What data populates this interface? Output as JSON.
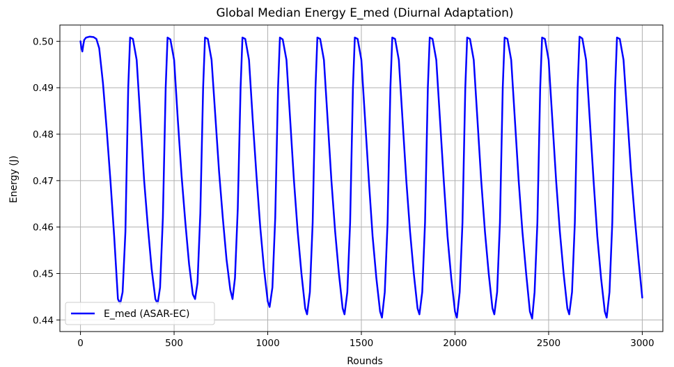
{
  "chart_data": {
    "type": "line",
    "title": "Global Median Energy E_med (Diurnal Adaptation)",
    "xlabel": "Rounds",
    "ylabel": "Energy (J)",
    "xlim": [
      -110,
      3110
    ],
    "ylim": [
      0.4375,
      0.5035
    ],
    "xticks": [
      0,
      500,
      1000,
      1500,
      2000,
      2500,
      3000
    ],
    "yticks": [
      0.44,
      0.45,
      0.46,
      0.47,
      0.48,
      0.49,
      0.5
    ],
    "xtick_labels": [
      "0",
      "500",
      "1000",
      "1500",
      "2000",
      "2500",
      "3000"
    ],
    "ytick_labels": [
      "0.44",
      "0.45",
      "0.46",
      "0.47",
      "0.48",
      "0.49",
      "0.50"
    ],
    "grid": true,
    "legend_position": "lower-left",
    "series": [
      {
        "name": "E_med (ASAR-EC)",
        "color": "#0000ff",
        "points": [
          [
            0,
            0.5
          ],
          [
            5,
            0.4985
          ],
          [
            10,
            0.4978
          ],
          [
            15,
            0.4992
          ],
          [
            20,
            0.5003
          ],
          [
            30,
            0.5008
          ],
          [
            50,
            0.501
          ],
          [
            70,
            0.5009
          ],
          [
            85,
            0.5005
          ],
          [
            100,
            0.4985
          ],
          [
            120,
            0.491
          ],
          [
            140,
            0.481
          ],
          [
            160,
            0.47
          ],
          [
            180,
            0.458
          ],
          [
            200,
            0.4445
          ],
          [
            212,
            0.4435
          ],
          [
            225,
            0.446
          ],
          [
            240,
            0.459
          ],
          [
            255,
            0.49
          ],
          [
            265,
            0.5008
          ],
          [
            280,
            0.5005
          ],
          [
            300,
            0.496
          ],
          [
            320,
            0.483
          ],
          [
            340,
            0.47
          ],
          [
            360,
            0.46
          ],
          [
            380,
            0.451
          ],
          [
            400,
            0.4445
          ],
          [
            412,
            0.4435
          ],
          [
            425,
            0.447
          ],
          [
            440,
            0.462
          ],
          [
            455,
            0.49
          ],
          [
            465,
            0.5008
          ],
          [
            480,
            0.5004
          ],
          [
            500,
            0.496
          ],
          [
            520,
            0.483
          ],
          [
            540,
            0.471
          ],
          [
            560,
            0.461
          ],
          [
            580,
            0.452
          ],
          [
            600,
            0.4455
          ],
          [
            612,
            0.4445
          ],
          [
            625,
            0.448
          ],
          [
            640,
            0.463
          ],
          [
            655,
            0.49
          ],
          [
            665,
            0.5008
          ],
          [
            680,
            0.5005
          ],
          [
            700,
            0.496
          ],
          [
            720,
            0.484
          ],
          [
            740,
            0.472
          ],
          [
            760,
            0.462
          ],
          [
            780,
            0.453
          ],
          [
            800,
            0.4465
          ],
          [
            812,
            0.4445
          ],
          [
            825,
            0.449
          ],
          [
            840,
            0.464
          ],
          [
            855,
            0.49
          ],
          [
            865,
            0.5008
          ],
          [
            880,
            0.5005
          ],
          [
            900,
            0.496
          ],
          [
            920,
            0.483
          ],
          [
            940,
            0.471
          ],
          [
            960,
            0.46
          ],
          [
            980,
            0.451
          ],
          [
            1000,
            0.444
          ],
          [
            1010,
            0.4428
          ],
          [
            1025,
            0.447
          ],
          [
            1040,
            0.462
          ],
          [
            1055,
            0.49
          ],
          [
            1065,
            0.5008
          ],
          [
            1080,
            0.5004
          ],
          [
            1100,
            0.496
          ],
          [
            1120,
            0.483
          ],
          [
            1140,
            0.47
          ],
          [
            1160,
            0.459
          ],
          [
            1180,
            0.45
          ],
          [
            1200,
            0.4425
          ],
          [
            1210,
            0.4412
          ],
          [
            1225,
            0.446
          ],
          [
            1240,
            0.461
          ],
          [
            1255,
            0.49
          ],
          [
            1265,
            0.5008
          ],
          [
            1280,
            0.5005
          ],
          [
            1300,
            0.496
          ],
          [
            1320,
            0.483
          ],
          [
            1340,
            0.47
          ],
          [
            1360,
            0.459
          ],
          [
            1380,
            0.45
          ],
          [
            1400,
            0.4425
          ],
          [
            1410,
            0.4412
          ],
          [
            1425,
            0.446
          ],
          [
            1440,
            0.461
          ],
          [
            1455,
            0.49
          ],
          [
            1465,
            0.5008
          ],
          [
            1480,
            0.5005
          ],
          [
            1500,
            0.496
          ],
          [
            1520,
            0.483
          ],
          [
            1540,
            0.47
          ],
          [
            1560,
            0.458
          ],
          [
            1580,
            0.449
          ],
          [
            1600,
            0.4418
          ],
          [
            1610,
            0.4405
          ],
          [
            1625,
            0.446
          ],
          [
            1640,
            0.461
          ],
          [
            1655,
            0.49
          ],
          [
            1665,
            0.5008
          ],
          [
            1680,
            0.5005
          ],
          [
            1700,
            0.496
          ],
          [
            1720,
            0.483
          ],
          [
            1740,
            0.47
          ],
          [
            1760,
            0.459
          ],
          [
            1780,
            0.45
          ],
          [
            1800,
            0.4425
          ],
          [
            1810,
            0.4412
          ],
          [
            1825,
            0.446
          ],
          [
            1840,
            0.461
          ],
          [
            1855,
            0.49
          ],
          [
            1865,
            0.5008
          ],
          [
            1880,
            0.5005
          ],
          [
            1900,
            0.496
          ],
          [
            1920,
            0.483
          ],
          [
            1940,
            0.47
          ],
          [
            1960,
            0.458
          ],
          [
            1980,
            0.449
          ],
          [
            2000,
            0.4418
          ],
          [
            2010,
            0.4405
          ],
          [
            2025,
            0.446
          ],
          [
            2040,
            0.461
          ],
          [
            2055,
            0.49
          ],
          [
            2065,
            0.5008
          ],
          [
            2080,
            0.5005
          ],
          [
            2100,
            0.496
          ],
          [
            2120,
            0.483
          ],
          [
            2140,
            0.47
          ],
          [
            2160,
            0.459
          ],
          [
            2180,
            0.45
          ],
          [
            2200,
            0.4425
          ],
          [
            2210,
            0.4412
          ],
          [
            2225,
            0.446
          ],
          [
            2240,
            0.461
          ],
          [
            2255,
            0.49
          ],
          [
            2265,
            0.5008
          ],
          [
            2280,
            0.5005
          ],
          [
            2300,
            0.496
          ],
          [
            2320,
            0.483
          ],
          [
            2340,
            0.47
          ],
          [
            2360,
            0.459
          ],
          [
            2380,
            0.45
          ],
          [
            2400,
            0.4418
          ],
          [
            2412,
            0.4403
          ],
          [
            2425,
            0.446
          ],
          [
            2440,
            0.461
          ],
          [
            2455,
            0.49
          ],
          [
            2465,
            0.5008
          ],
          [
            2480,
            0.5005
          ],
          [
            2500,
            0.496
          ],
          [
            2520,
            0.483
          ],
          [
            2540,
            0.47
          ],
          [
            2560,
            0.459
          ],
          [
            2580,
            0.45
          ],
          [
            2600,
            0.4425
          ],
          [
            2610,
            0.4412
          ],
          [
            2625,
            0.446
          ],
          [
            2640,
            0.461
          ],
          [
            2655,
            0.49
          ],
          [
            2665,
            0.501
          ],
          [
            2680,
            0.5006
          ],
          [
            2700,
            0.496
          ],
          [
            2720,
            0.483
          ],
          [
            2740,
            0.47
          ],
          [
            2760,
            0.458
          ],
          [
            2780,
            0.449
          ],
          [
            2800,
            0.4418
          ],
          [
            2810,
            0.4405
          ],
          [
            2825,
            0.446
          ],
          [
            2840,
            0.461
          ],
          [
            2855,
            0.49
          ],
          [
            2865,
            0.5008
          ],
          [
            2880,
            0.5005
          ],
          [
            2900,
            0.496
          ],
          [
            2920,
            0.484
          ],
          [
            2940,
            0.472
          ],
          [
            2960,
            0.462
          ],
          [
            2980,
            0.453
          ],
          [
            3000,
            0.4448
          ]
        ]
      }
    ]
  }
}
